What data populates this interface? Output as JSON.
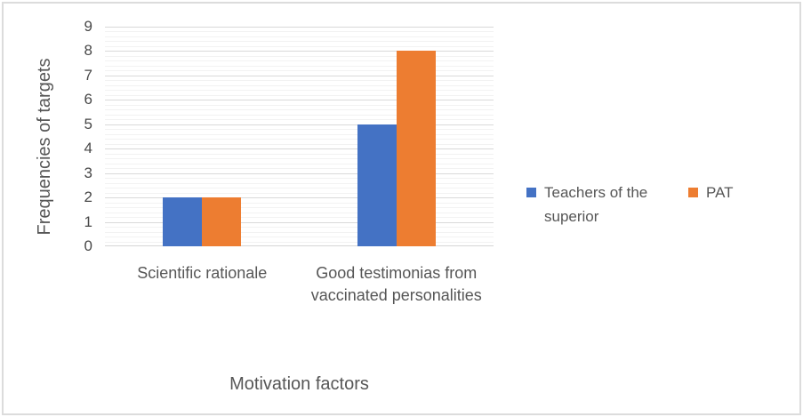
{
  "chart_data": {
    "type": "bar",
    "title": "",
    "categories": [
      "Scientific rationale",
      "Good testimonias from vaccinated personalities"
    ],
    "series": [
      {
        "name": "Teachers of the superior",
        "color": "#4472C4",
        "values": [
          2,
          5
        ]
      },
      {
        "name": "PAT",
        "color": "#ED7D31",
        "values": [
          2,
          8
        ]
      }
    ],
    "xlabel": "Motivation factors",
    "ylabel": "Frequencies of targets",
    "ylim": [
      0,
      9
    ],
    "ytick_step": 1,
    "minor_tick_step": 0.2,
    "grid": "major+minor horizontal gridlines",
    "legend_position": "right"
  },
  "style": {
    "major_gridline_color": "#d9d9d9",
    "minor_gridline_color": "#f2f2f2",
    "text_color": "#565656",
    "background": "#ffffff",
    "border_color": "#dcdcdc"
  }
}
